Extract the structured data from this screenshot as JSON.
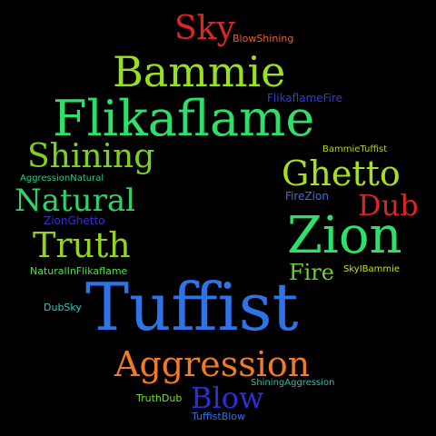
{
  "words": [
    {
      "text": "Sky",
      "color": "#dc2626"
    },
    {
      "text": "BlowShining",
      "color": "#f05a28"
    },
    {
      "text": "Bammie",
      "color": "#99e01e"
    },
    {
      "text": "FlikaflameFire",
      "color": "#2f3fd6"
    },
    {
      "text": "Flikaflame",
      "color": "#2ee06a"
    },
    {
      "text": "BammieTuffist",
      "color": "#b6d11e"
    },
    {
      "text": "Shining",
      "color": "#7fd11e"
    },
    {
      "text": "Ghetto",
      "color": "#a6e01e"
    },
    {
      "text": "AggressionNatural",
      "color": "#2ec68a"
    },
    {
      "text": "Natural",
      "color": "#2ed46a"
    },
    {
      "text": "FireZion",
      "color": "#2e73dd"
    },
    {
      "text": "Dub",
      "color": "#dc2626"
    },
    {
      "text": "ZionGhetto",
      "color": "#3b2ad6"
    },
    {
      "text": "Zion",
      "color": "#2ee06a"
    },
    {
      "text": "Truth",
      "color": "#92d41e"
    },
    {
      "text": "Fire",
      "color": "#6cd428"
    },
    {
      "text": "SkyIBammie",
      "color": "#c9e01e"
    },
    {
      "text": "NaturalInFlikaflame",
      "color": "#4be04a"
    },
    {
      "text": "Tuffist",
      "color": "#2e73e8"
    },
    {
      "text": "DubSky",
      "color": "#2ec6c6"
    },
    {
      "text": "Aggression",
      "color": "#f07a28"
    },
    {
      "text": "ShiningAggression",
      "color": "#22c1b3"
    },
    {
      "text": "Blow",
      "color": "#2e2ed6"
    },
    {
      "text": "TruthDub",
      "color": "#6ee01e"
    },
    {
      "text": "TuffistBlow",
      "color": "#2e73e8"
    }
  ]
}
